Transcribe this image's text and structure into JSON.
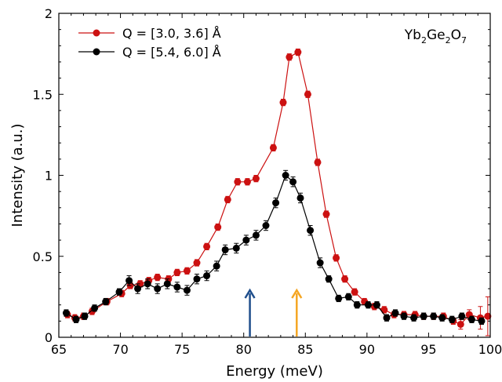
{
  "chart_data": {
    "type": "line",
    "title": "",
    "xlabel": "Energy (meV)",
    "ylabel": "Intensity (a.u.)",
    "xlim": [
      65,
      100
    ],
    "ylim": [
      0,
      2
    ],
    "x_ticks": [
      65,
      70,
      75,
      80,
      85,
      90,
      95,
      100
    ],
    "x_tick_labels": [
      "65",
      "70",
      "75",
      "80",
      "85",
      "90",
      "95",
      "100"
    ],
    "y_ticks": [
      0,
      0.5,
      1,
      1.5,
      2
    ],
    "y_tick_labels": [
      "0",
      "0.5",
      "1",
      "1.5",
      "2"
    ],
    "grid": false,
    "legend_position": "top-left",
    "annotation": {
      "base": "Yb",
      "s1": "2",
      "mid": "Ge",
      "s2": "2",
      "tail": "O",
      "s3": "7"
    },
    "arrows": [
      {
        "x": 80.5,
        "color": "#1f4e8c"
      },
      {
        "x": 84.3,
        "color": "#f5a623"
      }
    ],
    "series": [
      {
        "name": "Q = [3.0, 3.6] Å",
        "color": "#cc1111",
        "x": [
          65.7,
          66.3,
          67.0,
          67.7,
          68.9,
          70.1,
          70.8,
          71.6,
          72.3,
          73.0,
          73.9,
          74.6,
          75.4,
          76.2,
          77.0,
          77.9,
          78.7,
          79.5,
          80.3,
          81.0,
          82.4,
          83.2,
          83.7,
          84.4,
          85.2,
          86.0,
          86.7,
          87.5,
          88.2,
          89.0,
          89.8,
          90.6,
          91.4,
          92.2,
          93.0,
          93.9,
          94.6,
          95.4,
          96.2,
          97.0,
          97.6,
          98.3,
          99.2,
          99.8
        ],
        "y": [
          0.14,
          0.12,
          0.13,
          0.16,
          0.22,
          0.27,
          0.32,
          0.33,
          0.35,
          0.37,
          0.36,
          0.4,
          0.41,
          0.46,
          0.56,
          0.68,
          0.85,
          0.96,
          0.96,
          0.98,
          1.17,
          1.45,
          1.73,
          1.76,
          1.5,
          1.08,
          0.76,
          0.49,
          0.36,
          0.28,
          0.22,
          0.19,
          0.17,
          0.14,
          0.14,
          0.14,
          0.13,
          0.13,
          0.13,
          0.1,
          0.08,
          0.14,
          0.12,
          0.13
        ],
        "err": [
          0.02,
          0.02,
          0.02,
          0.02,
          0.02,
          0.02,
          0.02,
          0.02,
          0.02,
          0.02,
          0.02,
          0.02,
          0.02,
          0.02,
          0.02,
          0.02,
          0.02,
          0.02,
          0.02,
          0.02,
          0.02,
          0.02,
          0.02,
          0.02,
          0.02,
          0.02,
          0.02,
          0.02,
          0.02,
          0.02,
          0.02,
          0.02,
          0.02,
          0.02,
          0.02,
          0.02,
          0.02,
          0.02,
          0.02,
          0.02,
          0.03,
          0.03,
          0.07,
          0.12
        ]
      },
      {
        "name": "Q = [5.4, 6.0] Å",
        "color": "#000000",
        "x": [
          65.6,
          66.4,
          67.1,
          67.9,
          68.8,
          69.9,
          70.7,
          71.4,
          72.2,
          73.0,
          73.8,
          74.6,
          75.4,
          76.2,
          77.0,
          77.8,
          78.5,
          79.4,
          80.2,
          81.0,
          81.8,
          82.6,
          83.4,
          84.0,
          84.6,
          85.4,
          86.2,
          86.9,
          87.7,
          88.5,
          89.2,
          90.1,
          90.8,
          91.6,
          92.3,
          93.0,
          93.8,
          94.6,
          95.4,
          96.1,
          96.9,
          97.7,
          98.5,
          99.3
        ],
        "y": [
          0.15,
          0.11,
          0.13,
          0.18,
          0.22,
          0.28,
          0.35,
          0.3,
          0.33,
          0.3,
          0.33,
          0.31,
          0.29,
          0.36,
          0.38,
          0.44,
          0.54,
          0.55,
          0.6,
          0.63,
          0.69,
          0.83,
          1.0,
          0.96,
          0.86,
          0.66,
          0.46,
          0.36,
          0.24,
          0.25,
          0.2,
          0.2,
          0.2,
          0.12,
          0.15,
          0.13,
          0.12,
          0.13,
          0.13,
          0.12,
          0.11,
          0.13,
          0.11,
          0.1
        ],
        "err": [
          0.02,
          0.02,
          0.02,
          0.02,
          0.02,
          0.02,
          0.03,
          0.03,
          0.03,
          0.03,
          0.03,
          0.03,
          0.03,
          0.03,
          0.03,
          0.03,
          0.03,
          0.03,
          0.03,
          0.03,
          0.03,
          0.03,
          0.03,
          0.03,
          0.03,
          0.03,
          0.03,
          0.02,
          0.02,
          0.02,
          0.02,
          0.02,
          0.02,
          0.02,
          0.02,
          0.02,
          0.02,
          0.02,
          0.02,
          0.02,
          0.02,
          0.02,
          0.02,
          0.02
        ]
      }
    ]
  }
}
